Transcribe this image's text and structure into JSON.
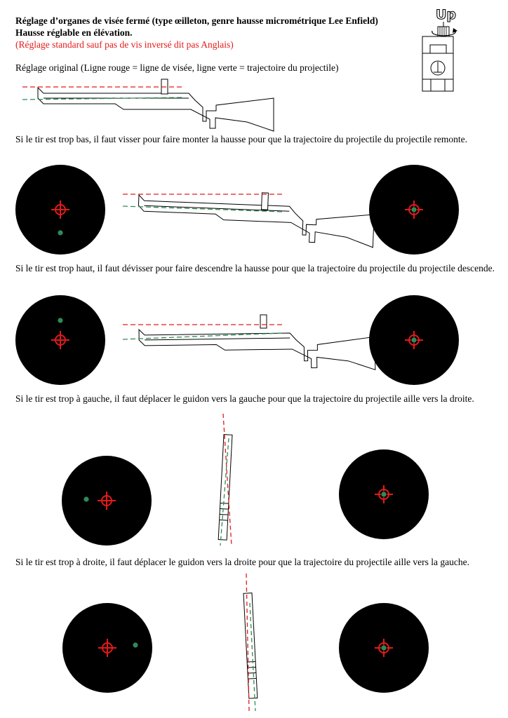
{
  "header": {
    "title_line1": "Réglage d’organes de visée fermé (type œilleton, genre hausse micrométrique Lee Enfield)",
    "title_line2": "Hausse réglable en élévation.",
    "note": "(Réglage standard sauf pas de vis inversé dit pas Anglais)",
    "up_label": "Up"
  },
  "colors": {
    "line_of_sight": "#e41a1a",
    "projectile_trajectory": "#2e8b57",
    "impact_dot": "#2e8b57"
  },
  "sections": {
    "original": "Réglage original (Ligne rouge = ligne de visée, ligne verte = trajectoire du projectile)",
    "too_low": "Si le tir est trop bas, il faut visser pour faire monter la hausse pour que la trajectoire du projectile du projectile remonte.",
    "too_high": "Si le tir est trop haut, il faut dévisser pour faire descendre la hausse pour que la trajectoire du projectile du projectile descende.",
    "too_left": "Si le tir est trop à gauche, il faut déplacer le guidon vers la gauche pour que la trajectoire du projectile aille vers la droite.",
    "too_right": "Si le tir est trop à droite, il faut déplacer le guidon vers la droite pour que la trajectoire du projectile aille vers la gauche."
  },
  "icons": {
    "rear_sight": "rear-sight-diagram-icon",
    "rotate_arrow": "rotate-arrow-icon",
    "rifle": "rifle-side-view-icon",
    "target": "concentric-target-icon",
    "crosshair": "red-crosshair-icon"
  }
}
